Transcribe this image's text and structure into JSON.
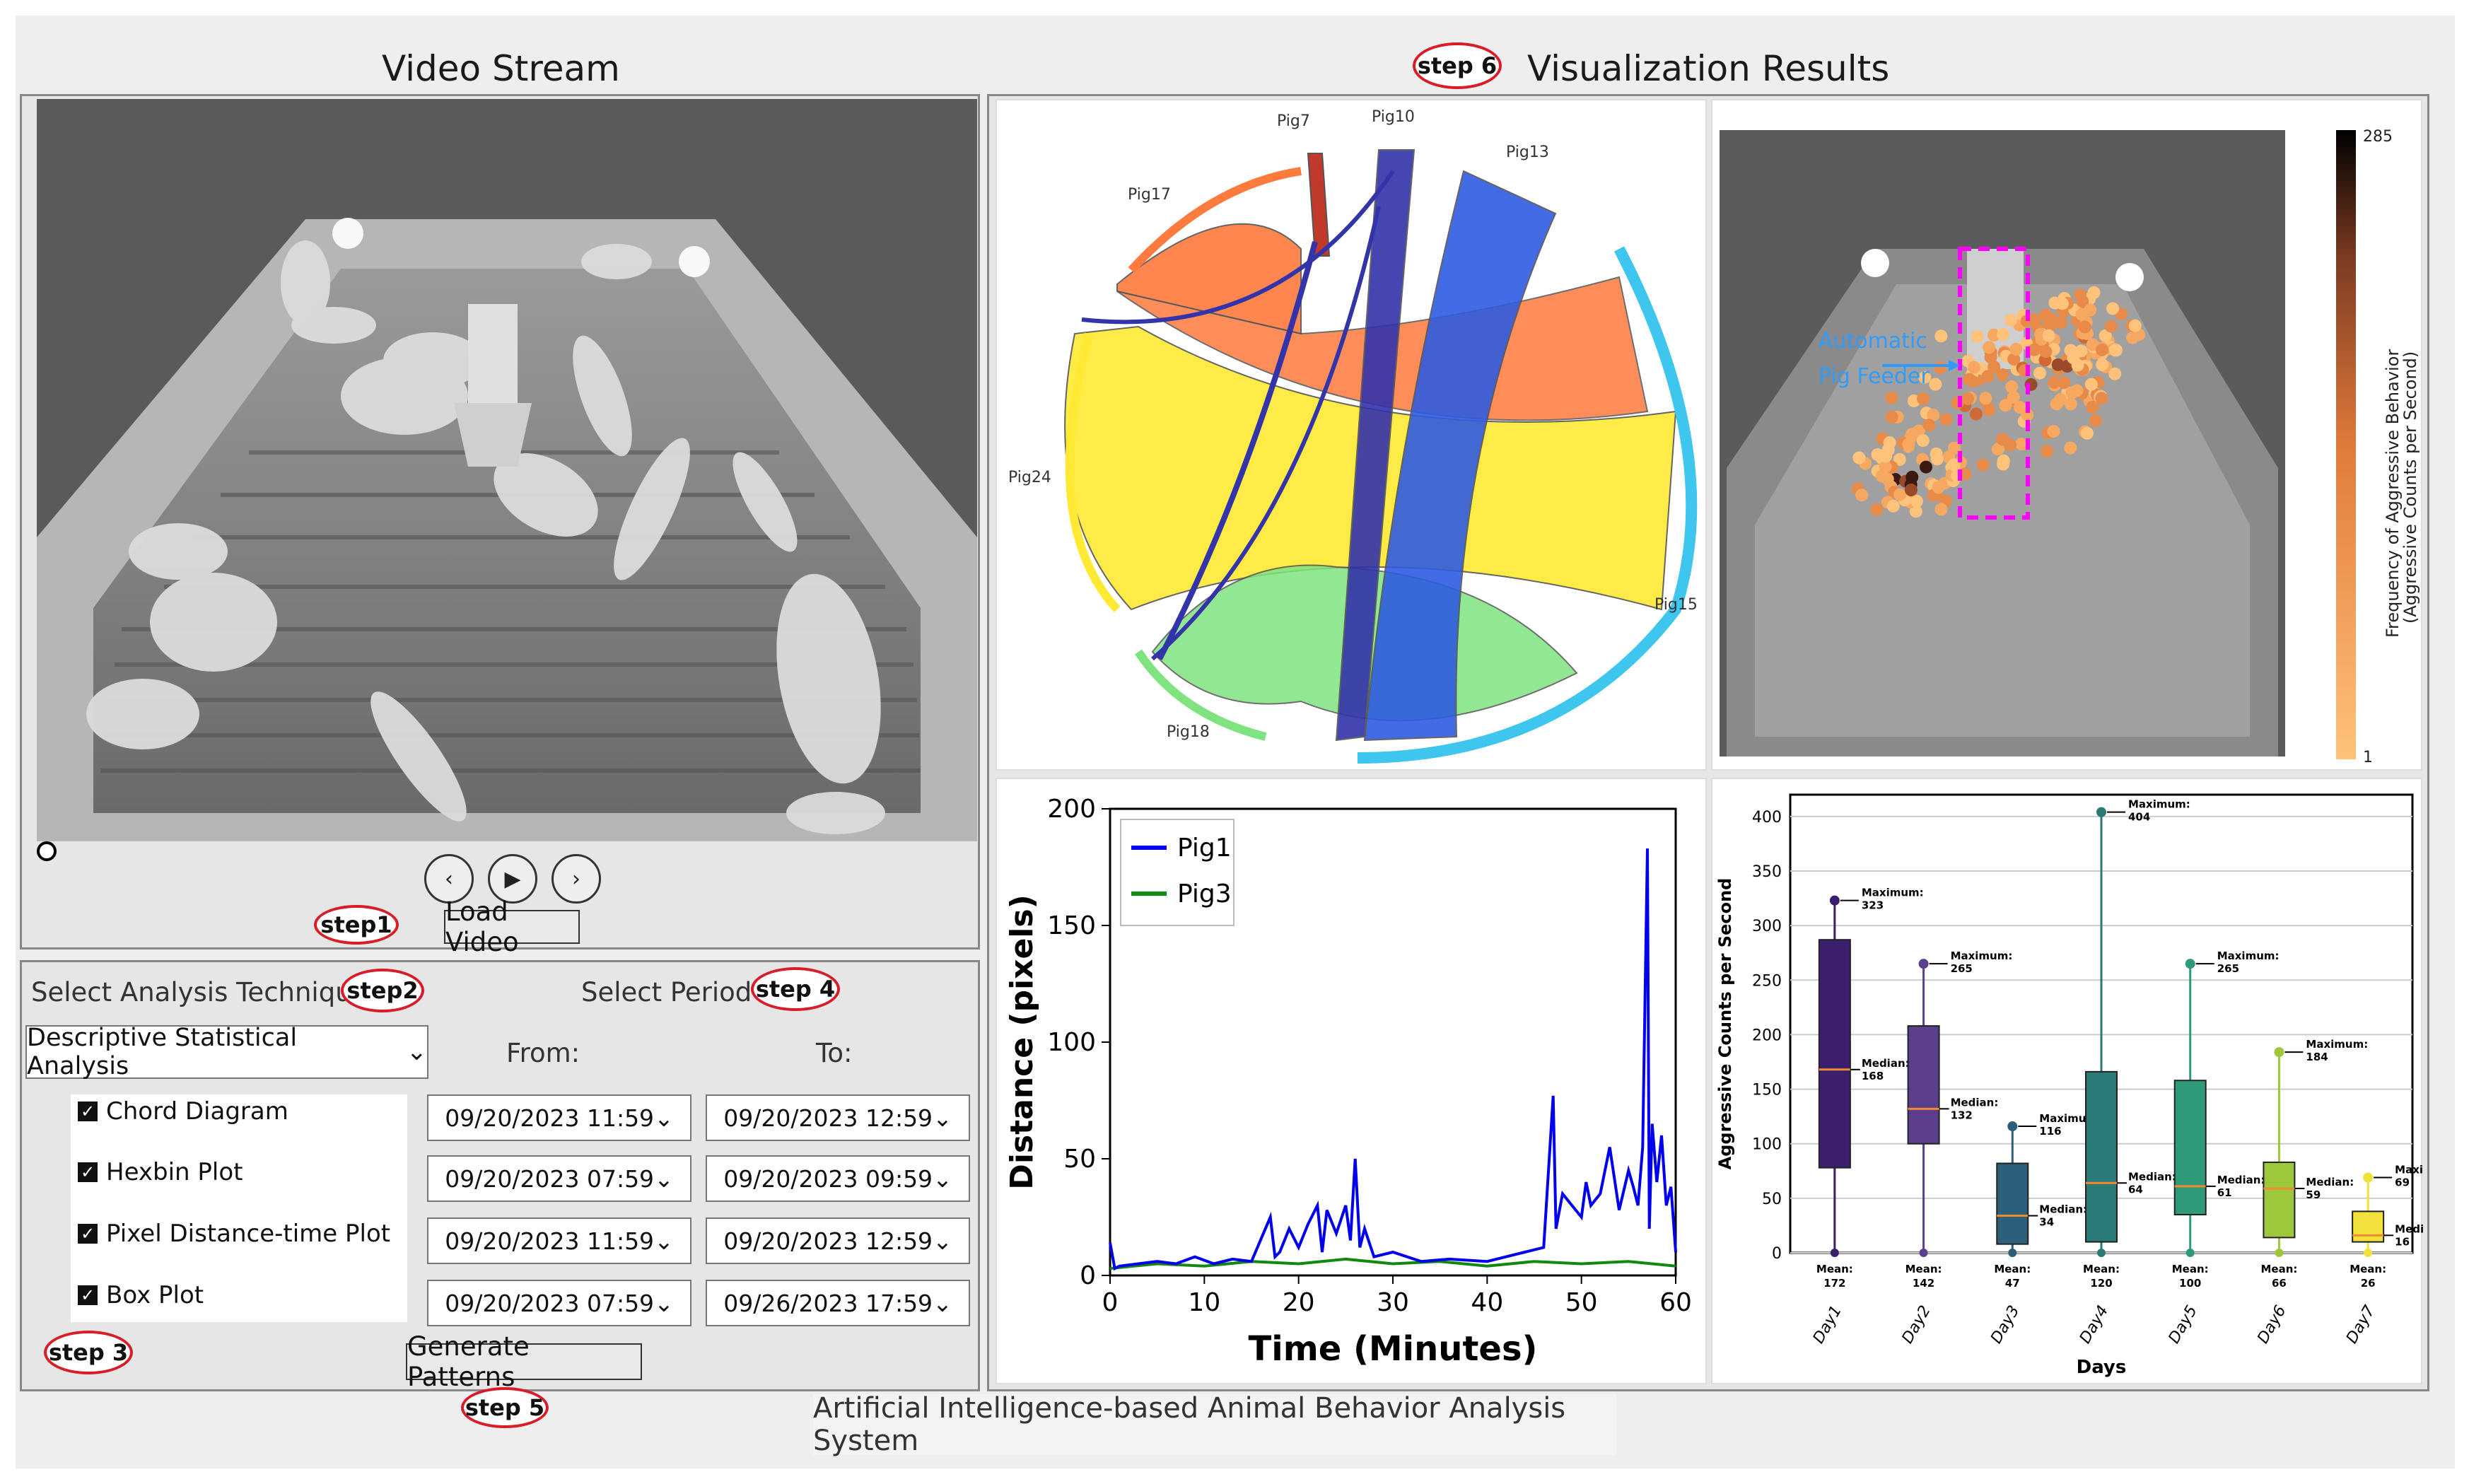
{
  "video": {
    "title": "Video Stream",
    "load_label": "Load Video",
    "prev_icon": "chevron-left-icon",
    "play_icon": "play-icon",
    "next_icon": "chevron-right-icon"
  },
  "steps": {
    "s1": "step1",
    "s2": "step2",
    "s3": "step 3",
    "s4": "step 4",
    "s5": "step 5",
    "s6": "step 6"
  },
  "analysis": {
    "technique_label": "Select Analysis Technique",
    "technique_value": "Descriptive Statistical Analysis",
    "period_label": "Select Period",
    "from_label": "From:",
    "to_label": "To:",
    "options": [
      {
        "label": "Chord Diagram",
        "from": "09/20/2023  11:59",
        "to": "09/20/2023  12:59"
      },
      {
        "label": "Hexbin Plot",
        "from": "09/20/2023  07:59",
        "to": "09/20/2023  09:59"
      },
      {
        "label": "Pixel Distance-time Plot",
        "from": "09/20/2023  11:59",
        "to": "09/20/2023  12:59"
      },
      {
        "label": "Box Plot",
        "from": "09/20/2023  07:59",
        "to": "09/26/2023  17:59"
      }
    ],
    "generate_label": "Generate Patterns"
  },
  "results": {
    "title": "Visualization Results"
  },
  "footer": "Artificial Intelligence-based Animal Behavior Analysis  System",
  "chord": {
    "labels": [
      "Pig7",
      "Pig10",
      "Pig13",
      "Pig17",
      "Pig24",
      "Pig15",
      "Pig18"
    ]
  },
  "hexbin": {
    "annotation_line1": "Automatic",
    "annotation_line2": "Pig Feeder",
    "colorbar_max": "285",
    "colorbar_min": "1",
    "colorbar_label1": "Frequency of Aggressive Behavior",
    "colorbar_label2": "(Aggressive Counts per Second)"
  },
  "chart_data": [
    {
      "type": "line",
      "xlabel": "Time (Minutes)",
      "ylabel": "Distance (pixels)",
      "xlim": [
        0,
        60
      ],
      "ylim": [
        0,
        200
      ],
      "xticks": [
        0,
        10,
        20,
        30,
        40,
        50,
        60
      ],
      "yticks": [
        0,
        50,
        100,
        150,
        200
      ],
      "legend": "top-left",
      "series": [
        {
          "name": "Pig1",
          "color": "#0000ee",
          "x": [
            0,
            0.5,
            1,
            3,
            5,
            7,
            9,
            11,
            13,
            15,
            17,
            17.5,
            18,
            19,
            20,
            21,
            22,
            22.5,
            23,
            24,
            25,
            25.5,
            26,
            26.5,
            27,
            28,
            30,
            33,
            36,
            40,
            44,
            46,
            47,
            47.3,
            48,
            49,
            50,
            50.5,
            51,
            52,
            53,
            54,
            55,
            55.5,
            56,
            56.5,
            57,
            57.2,
            57.5,
            58,
            58.5,
            59,
            59.5,
            60
          ],
          "y": [
            14,
            3,
            4,
            5,
            6,
            5,
            8,
            5,
            7,
            6,
            25,
            8,
            10,
            20,
            12,
            22,
            30,
            10,
            28,
            18,
            30,
            15,
            50,
            12,
            20,
            8,
            10,
            6,
            7,
            6,
            10,
            12,
            77,
            20,
            35,
            30,
            25,
            40,
            30,
            35,
            55,
            28,
            45,
            38,
            30,
            55,
            183,
            20,
            65,
            40,
            60,
            30,
            38,
            10
          ]
        },
        {
          "name": "Pig3",
          "color": "#118811",
          "x": [
            0,
            5,
            10,
            15,
            20,
            25,
            30,
            35,
            40,
            45,
            50,
            55,
            60
          ],
          "y": [
            3,
            5,
            4,
            6,
            5,
            7,
            5,
            6,
            4,
            6,
            5,
            6,
            4
          ]
        }
      ]
    },
    {
      "type": "box",
      "xlabel": "Days",
      "ylabel": "Aggressive Counts per Second",
      "ylim": [
        0,
        420
      ],
      "yticks": [
        0,
        50,
        100,
        150,
        200,
        250,
        300,
        350,
        400
      ],
      "categories": [
        "Day1",
        "Day2",
        "Day3",
        "Day4",
        "Day5",
        "Day6",
        "Day7"
      ],
      "max": [
        323,
        265,
        116,
        404,
        265,
        184,
        69
      ],
      "median": [
        168,
        132,
        34,
        64,
        61,
        59,
        16
      ],
      "mean": [
        172,
        142,
        47,
        120,
        100,
        66,
        26
      ],
      "q1": [
        78,
        100,
        8,
        10,
        35,
        14,
        10
      ],
      "q3": [
        287,
        208,
        82,
        166,
        158,
        83,
        38
      ],
      "colors": [
        "#3b1f6e",
        "#5b3f8c",
        "#2b5f7a",
        "#2a7a78",
        "#2e9a7a",
        "#9ec83b",
        "#f2e03b"
      ],
      "max_label": "Maximum:",
      "median_label": "Median:",
      "mean_label": "Mean:"
    }
  ]
}
